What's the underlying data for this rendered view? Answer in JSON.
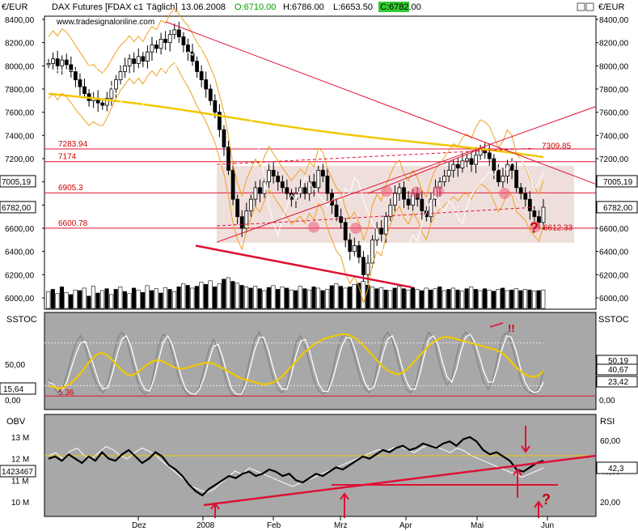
{
  "header": {
    "y_unit_left": "€/EUR",
    "instrument": "DAX Futures [FDAX c1",
    "period": "Täglich]",
    "date": "13.06.2008",
    "open": "O:6710.00",
    "high": "H:6786.00",
    "low": "L:6653.50",
    "close": "C:6782.00",
    "source": "www.tradesignalonline.com",
    "y_unit_right": "€/EUR"
  },
  "colors": {
    "price_bg": "#ffffff",
    "channel_fill": "#ecd9d6",
    "trend_red": "#dd1133",
    "ma_yellow": "#f0c800",
    "bollinger": "#f0a020",
    "stoch_fast": "#8a8a8a",
    "stoch_slow": "#ffffff",
    "panel_bg": "#a8a8a8",
    "obv_line": "#000000"
  },
  "chart_data": [
    {
      "panel": "price",
      "type": "candlestick",
      "ylim": [
        5900,
        8500
      ],
      "yticks": [
        "6000,00",
        "6200,00",
        "6400,00",
        "6600,00",
        "6800,00",
        "7000,00",
        "7200,00",
        "7400,00",
        "7600,00",
        "7800,00",
        "8000,00",
        "8200,00",
        "8400,00"
      ],
      "x_labels": [
        "Dez",
        "2008",
        "Feb",
        "Mrz",
        "Apr",
        "Mai",
        "Jun"
      ],
      "levels": [
        {
          "label": "7283.94",
          "value": 7283.94
        },
        {
          "label": "7174",
          "value": 7174
        },
        {
          "label": "6905.3",
          "value": 6905.3
        },
        {
          "label": "6600.78",
          "value": 6600.78
        }
      ],
      "annotations": [
        "7309.85",
        "6612.33",
        "?"
      ],
      "current_price_boxes": [
        "7005,19",
        "6782,00"
      ],
      "close_series": [
        8020,
        8060,
        8000,
        8050,
        8010,
        7950,
        7880,
        7820,
        7760,
        7700,
        7720,
        7680,
        7660,
        7720,
        7800,
        7880,
        7950,
        8000,
        8060,
        8020,
        8080,
        8040,
        8120,
        8180,
        8150,
        8230,
        8200,
        8270,
        8310,
        8250,
        8180,
        8120,
        8040,
        7950,
        7880,
        7800,
        7700,
        7600,
        7450,
        7300,
        7100,
        6850,
        6700,
        6600,
        6750,
        6850,
        6950,
        6900,
        7000,
        7100,
        7050,
        7000,
        6950,
        6900,
        6850,
        6900,
        6950,
        6900,
        7000,
        6950,
        7100,
        7050,
        6900,
        6800,
        6700,
        6650,
        6500,
        6400,
        6450,
        6350,
        6200,
        6300,
        6500,
        6600,
        6550,
        6700,
        6800,
        6900,
        6950,
        6850,
        6800,
        6900,
        6850,
        6750,
        6700,
        6850,
        6950,
        7000,
        7050,
        7100,
        7150,
        7120,
        7180,
        7200,
        7150,
        7230,
        7280,
        7250,
        7200,
        7100,
        7000,
        7050,
        7150,
        7100,
        6950,
        6900,
        6850,
        6750,
        6700,
        6650,
        6782
      ],
      "volume": [
        55,
        62,
        48,
        70,
        52,
        45,
        60,
        58,
        66,
        40,
        72,
        50,
        58,
        64,
        45,
        62,
        70,
        55,
        48,
        66,
        60,
        52,
        74,
        58,
        64,
        50,
        68,
        62,
        55,
        70,
        80,
        75,
        66,
        72,
        85,
        78,
        90,
        70,
        80,
        95,
        100,
        88,
        82,
        75,
        70,
        66,
        72,
        64,
        58,
        68,
        74,
        62,
        70,
        66,
        60,
        58,
        72,
        64,
        60,
        70,
        66,
        58,
        62,
        74,
        80,
        72,
        66,
        70,
        78,
        82,
        88,
        76,
        70,
        64,
        68,
        60,
        58,
        66,
        72,
        64,
        60,
        68,
        62,
        58,
        66,
        60,
        64,
        70,
        58,
        62,
        66,
        60,
        56,
        64,
        70,
        62,
        58,
        64,
        60,
        56,
        62,
        66,
        58,
        60,
        64,
        58,
        62,
        60,
        56,
        58,
        60
      ]
    },
    {
      "panel": "stochastic",
      "label_left": "SSTOC",
      "label_right": "SSTOC",
      "type": "line",
      "ylim": [
        -5,
        110
      ],
      "yticks_left": [
        "0,00",
        "50,00"
      ],
      "yticks_right": [
        "0,00",
        "50,00"
      ],
      "level_label": "5.36",
      "left_value": "15,64",
      "right_values": [
        "50,19",
        "40,67",
        "23,42"
      ],
      "annotation": "!!",
      "series": [
        {
          "values": [
            30,
            20,
            10,
            15,
            35,
            60,
            80,
            90,
            75,
            50,
            30,
            15,
            10,
            25,
            55,
            85,
            95,
            85,
            60,
            35,
            15,
            8,
            12,
            40,
            75,
            92,
            88,
            65,
            40,
            20,
            10,
            5,
            8,
            20,
            45,
            70,
            85,
            70,
            45,
            20,
            8,
            5,
            10,
            30,
            60,
            85,
            95,
            80,
            55,
            30,
            15,
            10,
            20,
            50,
            80,
            90,
            75,
            50,
            25,
            12,
            8,
            15,
            40,
            70,
            88,
            92,
            78,
            55,
            30,
            15,
            10,
            25,
            55,
            85,
            95,
            85,
            60,
            35,
            15,
            10,
            20,
            50,
            80,
            95,
            88,
            60,
            35,
            20,
            30,
            60,
            85,
            95,
            90,
            70,
            45,
            25,
            15,
            30,
            60,
            88,
            95,
            80,
            55,
            30,
            15,
            10,
            8,
            15,
            40
          ]
        },
        {
          "values": [
            25,
            22,
            15,
            14,
            25,
            45,
            65,
            80,
            82,
            65,
            45,
            25,
            15,
            18,
            38,
            65,
            85,
            90,
            75,
            50,
            28,
            15,
            12,
            28,
            55,
            80,
            90,
            78,
            55,
            32,
            15,
            9,
            8,
            15,
            32,
            55,
            75,
            78,
            60,
            35,
            15,
            8,
            8,
            20,
            45,
            70,
            88,
            88,
            70,
            45,
            25,
            15,
            15,
            35,
            62,
            82,
            85,
            68,
            42,
            22,
            12,
            12,
            28,
            52,
            75,
            88,
            86,
            68,
            45,
            25,
            14,
            18,
            38,
            65,
            85,
            90,
            75,
            50,
            28,
            15,
            15,
            35,
            62,
            85,
            90,
            78,
            52,
            32,
            25,
            42,
            68,
            88,
            92,
            82,
            62,
            40,
            25,
            25,
            45,
            72,
            90,
            88,
            70,
            45,
            25,
            14,
            10,
            12,
            25
          ]
        },
        {
          "values": [
            20,
            18,
            16,
            18,
            22,
            28,
            36,
            45,
            55,
            62,
            66,
            64,
            58,
            50,
            42,
            36,
            34,
            38,
            44,
            50,
            54,
            56,
            54,
            50,
            46,
            44,
            44,
            46,
            48,
            50,
            52,
            52,
            50,
            46,
            42,
            38,
            34,
            30,
            28,
            26,
            24,
            22,
            22,
            24,
            28,
            34,
            42,
            50,
            58,
            66,
            72,
            78,
            82,
            86,
            88,
            90,
            92,
            92,
            90,
            86,
            80,
            72,
            64,
            56,
            48,
            42,
            38,
            36,
            38,
            44,
            52,
            60,
            68,
            76,
            82,
            86,
            88,
            88,
            86,
            84,
            82,
            80,
            78,
            76,
            74,
            72,
            70,
            66,
            60,
            52,
            44,
            38,
            34,
            32,
            34,
            40
          ]
        }
      ]
    },
    {
      "panel": "obv_rsi",
      "label_left": "OBV",
      "label_right": "RSI",
      "type": "line",
      "yticks_left": [
        "10 M",
        "11 M",
        "12 M",
        "13 M"
      ],
      "yticks_right": [
        "20,00",
        "40,00",
        "60,00"
      ],
      "left_value": "1423467",
      "right_value": "42,3",
      "annotation": "?",
      "series": [
        {
          "name": "OBV",
          "values": [
            12.0,
            12.1,
            11.9,
            12.2,
            12.0,
            11.8,
            12.1,
            11.9,
            12.3,
            12.0,
            11.9,
            12.2,
            12.4,
            12.1,
            11.8,
            12.0,
            12.3,
            12.1,
            11.7,
            11.5,
            11.2,
            10.8,
            10.5,
            10.3,
            10.6,
            10.8,
            11.0,
            11.2,
            11.1,
            11.3,
            11.4,
            11.2,
            11.3,
            11.5,
            11.4,
            11.2,
            11.3,
            11.0,
            10.9,
            11.1,
            11.3,
            11.2,
            11.4,
            11.6,
            11.5,
            11.7,
            11.9,
            12.1,
            12.0,
            12.2,
            12.4,
            12.3,
            12.5,
            12.6,
            12.4,
            12.5,
            12.7,
            12.6,
            12.5,
            12.7,
            12.8,
            12.6,
            12.9,
            13.0,
            12.8,
            12.4,
            12.2,
            12.3,
            12.1,
            11.9,
            11.5,
            11.4,
            11.6,
            11.8,
            11.9
          ]
        },
        {
          "name": "RSI",
          "values": [
            50,
            52,
            48,
            53,
            55,
            50,
            48,
            52,
            56,
            54,
            50,
            48,
            52,
            55,
            53,
            50,
            46,
            42,
            38,
            34,
            30,
            28,
            26,
            28,
            32,
            36,
            40,
            38,
            42,
            40,
            38,
            36,
            34,
            32,
            30,
            32,
            34,
            36,
            38,
            40,
            42,
            44,
            46,
            48,
            50,
            52,
            54,
            53,
            55,
            56,
            54,
            52,
            55,
            57,
            56,
            54,
            52,
            55,
            53,
            50,
            48,
            46,
            44,
            42,
            40,
            38,
            36,
            38,
            40,
            42
          ]
        }
      ]
    }
  ]
}
